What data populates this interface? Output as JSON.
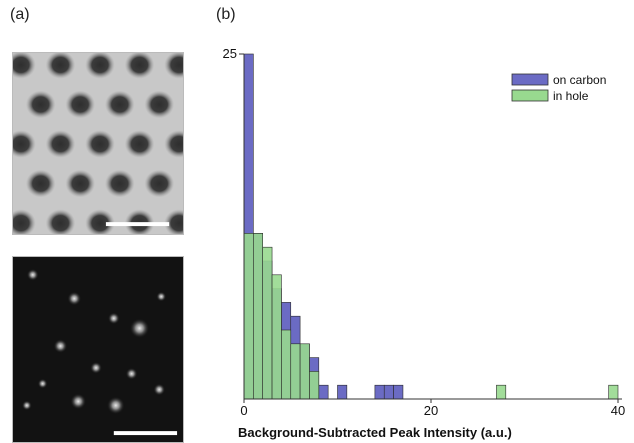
{
  "panels": {
    "a_label": "(a)",
    "b_label": "(b)"
  },
  "chart_data": {
    "type": "bar",
    "subtype": "overlapping-histogram",
    "bin_width": 1,
    "x_bin_starts": [
      0,
      1,
      2,
      3,
      4,
      5,
      6,
      7,
      8,
      9,
      10,
      11,
      12,
      13,
      14,
      15,
      16,
      17,
      18,
      19,
      20,
      21,
      22,
      23,
      24,
      25,
      26,
      27,
      28,
      29,
      30,
      31,
      32,
      33,
      34,
      35,
      36,
      37,
      38,
      39
    ],
    "series": [
      {
        "name": "on carbon",
        "color": "#6b6bc4",
        "values": [
          25,
          12,
          10,
          8,
          7,
          6,
          4,
          3,
          1,
          0,
          1,
          0,
          0,
          0,
          1,
          1,
          1,
          0,
          0,
          0,
          0,
          0,
          0,
          0,
          0,
          0,
          0,
          0,
          0,
          0,
          0,
          0,
          0,
          0,
          0,
          0,
          0,
          0,
          0,
          0
        ]
      },
      {
        "name": "in hole",
        "color": "#98d98f",
        "values": [
          12,
          12,
          11,
          9,
          5,
          4,
          4,
          2,
          0,
          0,
          0,
          0,
          0,
          0,
          0,
          0,
          0,
          0,
          0,
          0,
          0,
          0,
          0,
          0,
          0,
          0,
          0,
          1,
          0,
          0,
          0,
          0,
          0,
          0,
          0,
          0,
          0,
          0,
          0,
          1
        ]
      }
    ],
    "xlabel": "Background-Subtracted Peak Intensity (a.u.)",
    "ylabel": "",
    "x_ticks": [
      "0",
      "20",
      "40"
    ],
    "y_ticks": [
      "25"
    ],
    "xlim": [
      0,
      40
    ],
    "ylim": [
      0,
      25
    ],
    "legend_position": "top-right",
    "grid": false
  }
}
